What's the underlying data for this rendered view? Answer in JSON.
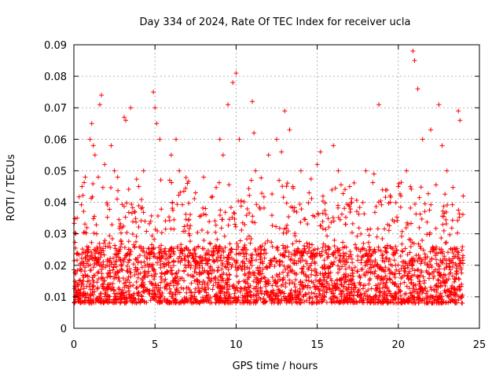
{
  "chart_data": {
    "type": "scatter",
    "title": "Day 334 of 2024, Rate Of TEC Index for receiver ucla",
    "xlabel": "GPS time / hours",
    "ylabel": "ROTI / TECUs",
    "xlim": [
      0,
      25
    ],
    "ylim": [
      0,
      0.09
    ],
    "xticks": [
      "0",
      "5",
      "10",
      "15",
      "20",
      "25"
    ],
    "yticks": [
      "0",
      "0.01",
      "0.02",
      "0.03",
      "0.04",
      "0.05",
      "0.06",
      "0.07",
      "0.08",
      "0.09"
    ],
    "grid": true,
    "marker": "+",
    "color": "#ff0000",
    "x_data_range": [
      0,
      24
    ],
    "typical_band": [
      0.006,
      0.03
    ],
    "points": [
      [
        0.1,
        0.018
      ],
      [
        0.2,
        0.035
      ],
      [
        0.3,
        0.012
      ],
      [
        0.5,
        0.045
      ],
      [
        0.7,
        0.048
      ],
      [
        1.0,
        0.06
      ],
      [
        1.1,
        0.065
      ],
      [
        1.2,
        0.058
      ],
      [
        1.3,
        0.055
      ],
      [
        1.6,
        0.071
      ],
      [
        1.7,
        0.074
      ],
      [
        1.9,
        0.052
      ],
      [
        2.3,
        0.058
      ],
      [
        2.5,
        0.05
      ],
      [
        2.7,
        0.048
      ],
      [
        3.1,
        0.067
      ],
      [
        3.2,
        0.066
      ],
      [
        3.5,
        0.07
      ],
      [
        4.0,
        0.045
      ],
      [
        4.3,
        0.05
      ],
      [
        4.9,
        0.075
      ],
      [
        5.0,
        0.07
      ],
      [
        5.1,
        0.065
      ],
      [
        5.3,
        0.06
      ],
      [
        6.0,
        0.055
      ],
      [
        6.3,
        0.06
      ],
      [
        6.5,
        0.05
      ],
      [
        7.0,
        0.046
      ],
      [
        7.5,
        0.043
      ],
      [
        8.0,
        0.048
      ],
      [
        9.0,
        0.06
      ],
      [
        9.2,
        0.055
      ],
      [
        9.5,
        0.071
      ],
      [
        9.8,
        0.078
      ],
      [
        10.0,
        0.081
      ],
      [
        10.2,
        0.06
      ],
      [
        11.0,
        0.072
      ],
      [
        11.1,
        0.062
      ],
      [
        11.2,
        0.05
      ],
      [
        12.0,
        0.055
      ],
      [
        12.5,
        0.06
      ],
      [
        12.8,
        0.056
      ],
      [
        13.0,
        0.069
      ],
      [
        13.3,
        0.063
      ],
      [
        13.5,
        0.045
      ],
      [
        14.0,
        0.05
      ],
      [
        14.5,
        0.043
      ],
      [
        15.0,
        0.052
      ],
      [
        15.2,
        0.056
      ],
      [
        16.0,
        0.058
      ],
      [
        16.3,
        0.05
      ],
      [
        17.0,
        0.045
      ],
      [
        18.0,
        0.05
      ],
      [
        18.5,
        0.049
      ],
      [
        18.8,
        0.071
      ],
      [
        19.5,
        0.04
      ],
      [
        20.0,
        0.045
      ],
      [
        20.5,
        0.05
      ],
      [
        20.9,
        0.088
      ],
      [
        21.0,
        0.085
      ],
      [
        21.2,
        0.076
      ],
      [
        21.5,
        0.06
      ],
      [
        22.0,
        0.063
      ],
      [
        22.5,
        0.071
      ],
      [
        22.7,
        0.058
      ],
      [
        23.0,
        0.05
      ],
      [
        23.7,
        0.069
      ],
      [
        23.8,
        0.066
      ],
      [
        24.0,
        0.042
      ]
    ]
  }
}
